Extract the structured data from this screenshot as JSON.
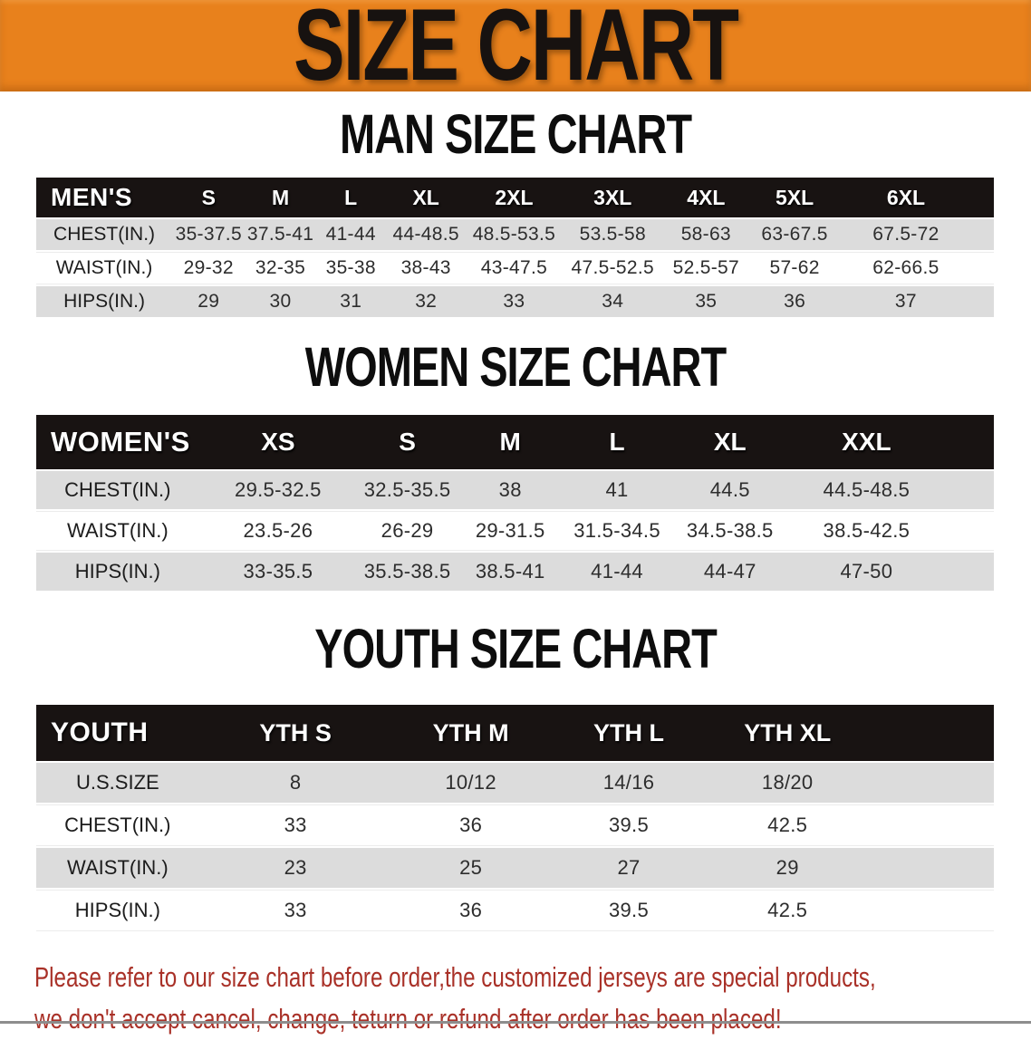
{
  "banner": {
    "title": "SIZE CHART"
  },
  "theme": {
    "banner_bg": "#E8811C",
    "table_header_bg": "#181312",
    "row_gray": "#DCDCDC",
    "disclaimer_red": "#A93128"
  },
  "sections": [
    {
      "id": "men",
      "title": "MAN SIZE CHART",
      "header_label": "MEN'S",
      "columns": [
        "S",
        "M",
        "L",
        "XL",
        "2XL",
        "3XL",
        "4XL",
        "5XL",
        "6XL"
      ],
      "rows": [
        {
          "label": "CHEST(IN.)",
          "values": [
            "35-37.5",
            "37.5-41",
            "41-44",
            "44-48.5",
            "48.5-53.5",
            "53.5-58",
            "58-63",
            "63-67.5",
            "67.5-72"
          ]
        },
        {
          "label": "WAIST(IN.)",
          "values": [
            "29-32",
            "32-35",
            "35-38",
            "38-43",
            "43-47.5",
            "47.5-52.5",
            "52.5-57",
            "57-62",
            "62-66.5"
          ]
        },
        {
          "label": "HIPS(IN.)",
          "values": [
            "29",
            "30",
            "31",
            "32",
            "33",
            "34",
            "35",
            "36",
            "37"
          ]
        }
      ]
    },
    {
      "id": "women",
      "title": "WOMEN SIZE CHART",
      "header_label": "WOMEN'S",
      "columns": [
        "XS",
        "S",
        "M",
        "L",
        "XL",
        "XXL"
      ],
      "rows": [
        {
          "label": "CHEST(IN.)",
          "values": [
            "29.5-32.5",
            "32.5-35.5",
            "38",
            "41",
            "44.5",
            "44.5-48.5"
          ]
        },
        {
          "label": "WAIST(IN.)",
          "values": [
            "23.5-26",
            "26-29",
            "29-31.5",
            "31.5-34.5",
            "34.5-38.5",
            "38.5-42.5"
          ]
        },
        {
          "label": "HIPS(IN.)",
          "values": [
            "33-35.5",
            "35.5-38.5",
            "38.5-41",
            "41-44",
            "44-47",
            "47-50"
          ]
        }
      ]
    },
    {
      "id": "youth",
      "title": "YOUTH SIZE CHART",
      "header_label": "YOUTH",
      "columns": [
        "YTH S",
        "YTH M",
        "YTH L",
        "YTH XL"
      ],
      "rows": [
        {
          "label": "U.S.SIZE",
          "values": [
            "8",
            "10/12",
            "14/16",
            "18/20"
          ]
        },
        {
          "label": "CHEST(IN.)",
          "values": [
            "33",
            "36",
            "39.5",
            "42.5"
          ]
        },
        {
          "label": "WAIST(IN.)",
          "values": [
            "23",
            "25",
            "27",
            "29"
          ]
        },
        {
          "label": "HIPS(IN.)",
          "values": [
            "33",
            "36",
            "39.5",
            "42.5"
          ]
        }
      ]
    }
  ],
  "disclaimer": {
    "line1": "Please refer to our size chart before order,the customized jerseys are special products,",
    "line2": "we don't accept cancel, change, teturn or refund after order has been placed!"
  }
}
